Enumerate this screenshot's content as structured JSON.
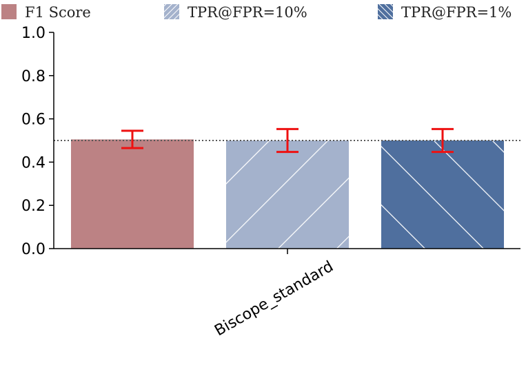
{
  "chart_data": {
    "type": "bar",
    "categories": [
      "Biscope_standard"
    ],
    "series": [
      {
        "name": "F1 Score",
        "values": [
          0.505
        ],
        "error": [
          0.04
        ],
        "color": "#bc8284",
        "pattern": "solid"
      },
      {
        "name": "TPR@FPR=10%",
        "values": [
          0.5
        ],
        "error": [
          0.053
        ],
        "color": "#a4b2cc",
        "pattern": "hatch-forward"
      },
      {
        "name": "TPR@FPR=1%",
        "values": [
          0.5
        ],
        "error": [
          0.053
        ],
        "color": "#4f6f9e",
        "pattern": "hatch-backward"
      }
    ],
    "ylim": [
      0,
      1.0
    ],
    "yticks": [
      "0.0",
      "0.2",
      "0.4",
      "0.6",
      "0.8",
      "1.0"
    ],
    "reference_line": 0.5,
    "error_bar_color": "#ee1111",
    "reference_line_color": "#555555",
    "legend_position": "top",
    "grid": false,
    "title": "",
    "xlabel": "",
    "ylabel": ""
  }
}
